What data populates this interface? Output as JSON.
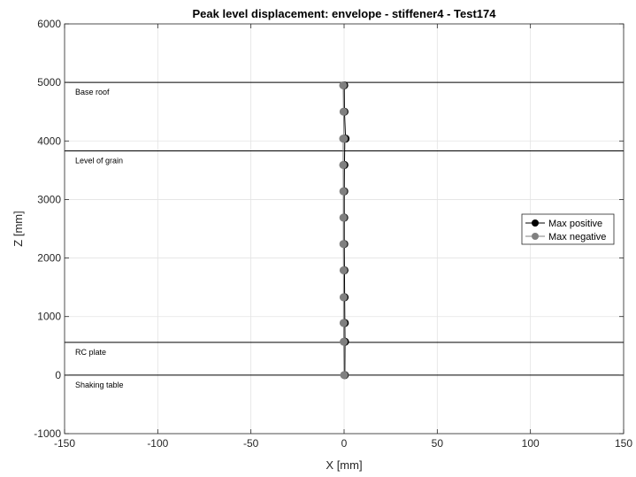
{
  "chart_data": {
    "type": "line",
    "title": "Peak level displacement: envelope - stiffener4 - Test174",
    "xlabel": "X [mm]",
    "ylabel": "Z [mm]",
    "xlim": [
      -150,
      150
    ],
    "ylim": [
      -1000,
      6000
    ],
    "xticks": [
      -150,
      -100,
      -50,
      0,
      50,
      100,
      150
    ],
    "yticks": [
      -1000,
      0,
      1000,
      2000,
      3000,
      4000,
      5000,
      6000
    ],
    "grid": true,
    "legend_position": "right",
    "levels": [
      {
        "label": "Base roof",
        "z": 5000
      },
      {
        "label": "Level of grain",
        "z": 3830
      },
      {
        "label": "RC plate",
        "z": 560
      },
      {
        "label": "Shaking table",
        "z": 0
      }
    ],
    "series": [
      {
        "name": "Max positive",
        "color": "#000000",
        "x": [
          0.4,
          0.5,
          0.4,
          0.3,
          0.2,
          0.1,
          0.1,
          0.1,
          0.2,
          0.4,
          0.8,
          0.2,
          0.1
        ],
        "y": [
          0,
          570,
          890,
          1330,
          1790,
          2240,
          2690,
          3140,
          3590,
          4040,
          4040,
          4500,
          4950
        ]
      },
      {
        "name": "Max negative",
        "color": "#808080",
        "x": [
          0.0,
          -0.2,
          -0.3,
          -0.3,
          -0.3,
          -0.4,
          -0.4,
          -0.4,
          -0.5,
          -0.5,
          -0.1,
          -0.3,
          -0.5
        ],
        "y": [
          0,
          570,
          890,
          1330,
          1790,
          2240,
          2690,
          3140,
          3590,
          4040,
          4040,
          4500,
          4950
        ]
      }
    ]
  }
}
